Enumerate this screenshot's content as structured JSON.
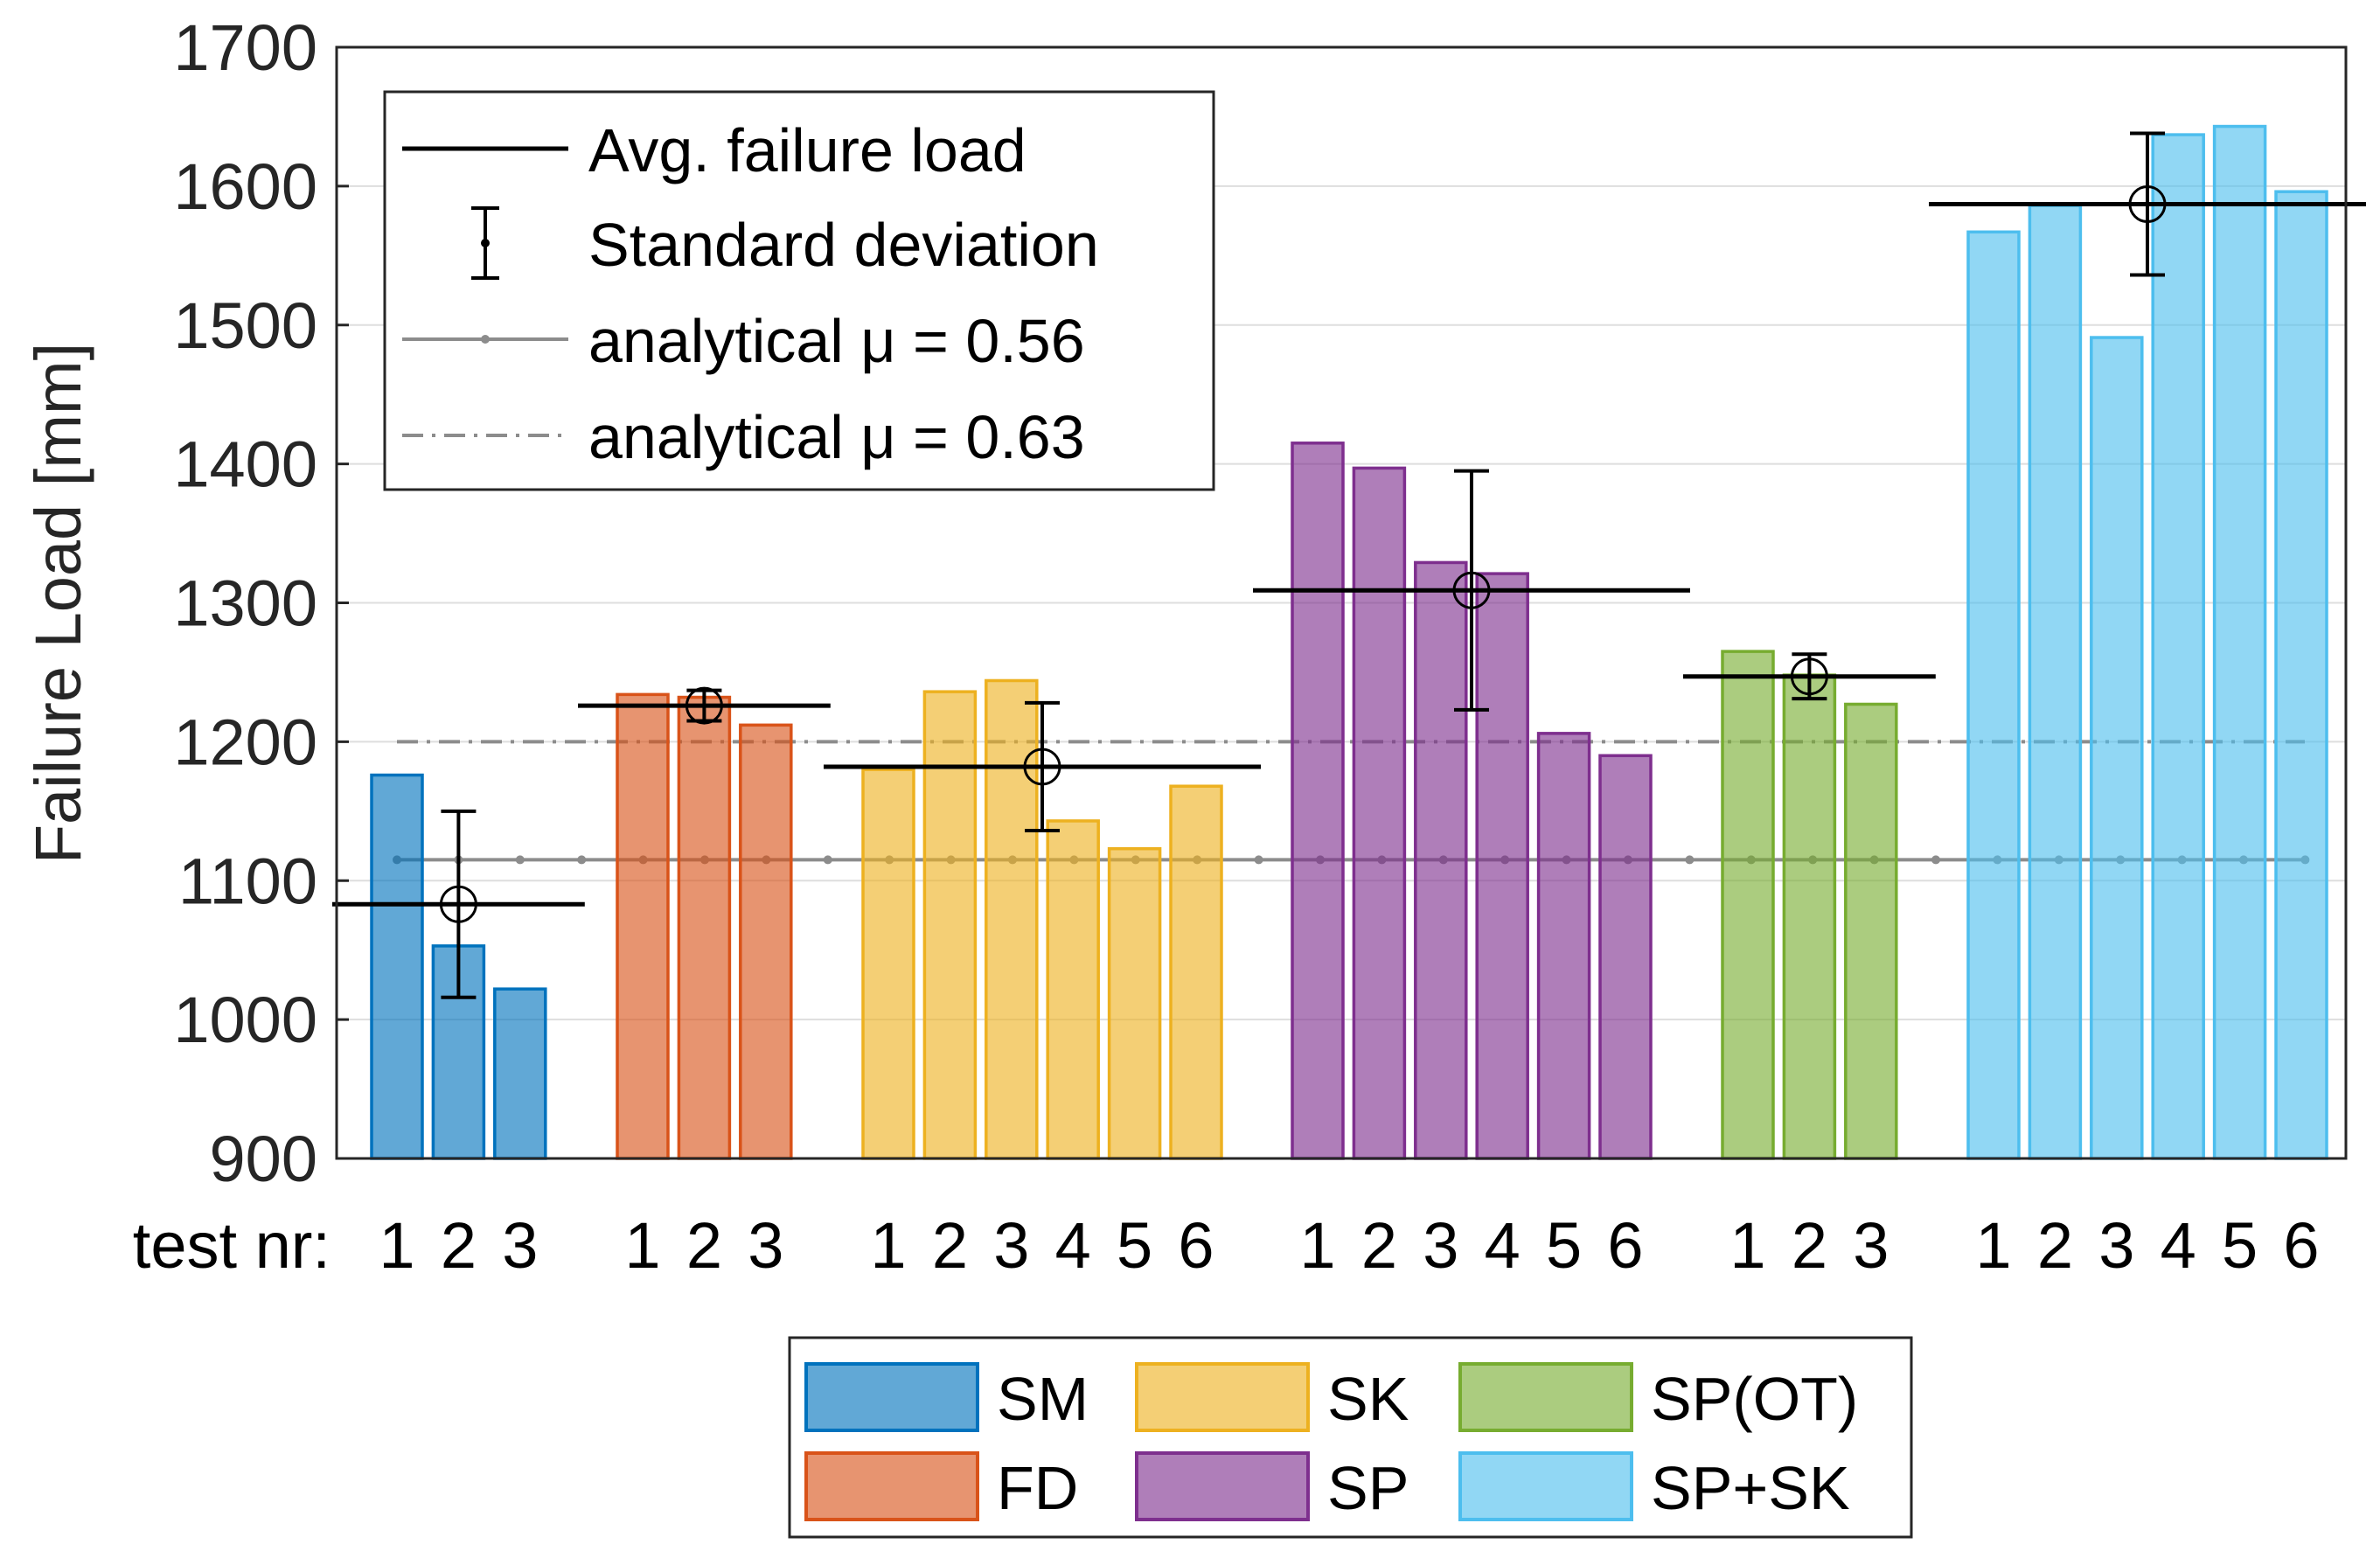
{
  "chart_data": {
    "type": "bar",
    "ylabel": "Failure Load [mm]",
    "ylim": [
      900,
      1700
    ],
    "yticks": [
      900,
      1000,
      1100,
      1200,
      1300,
      1400,
      1500,
      1600,
      1700
    ],
    "grid": true,
    "xlabel_prefix": "test nr:",
    "groups": [
      {
        "name": "SM",
        "color": "#0072BD",
        "tests": [
          "1",
          "2",
          "3"
        ],
        "values": [
          1176,
          1053,
          1022
        ],
        "avg": 1083,
        "std": 67
      },
      {
        "name": "FD",
        "color": "#D95319",
        "tests": [
          "1",
          "2",
          "3"
        ],
        "values": [
          1234,
          1232,
          1212
        ],
        "avg": 1226,
        "std": 11
      },
      {
        "name": "SK",
        "color": "#EDB120",
        "tests": [
          "1",
          "2",
          "3",
          "4",
          "5",
          "6"
        ],
        "values": [
          1180,
          1236,
          1244,
          1143,
          1123,
          1168
        ],
        "avg": 1182,
        "std": 46
      },
      {
        "name": "SP",
        "color": "#7E2F8E",
        "tests": [
          "1",
          "2",
          "3",
          "4",
          "5",
          "6"
        ],
        "values": [
          1415,
          1397,
          1329,
          1321,
          1206,
          1190
        ],
        "avg": 1309,
        "std": 86
      },
      {
        "name": "SP(OT)",
        "color": "#77AC30",
        "tests": [
          "1",
          "2",
          "3"
        ],
        "values": [
          1265,
          1248,
          1227
        ],
        "avg": 1247,
        "std": 16
      },
      {
        "name": "SP+SK",
        "color": "#4DBEEE",
        "tests": [
          "1",
          "2",
          "3",
          "4",
          "5",
          "6"
        ],
        "values": [
          1567,
          1586,
          1491,
          1637,
          1643,
          1596
        ],
        "avg": 1587,
        "std": 51
      }
    ],
    "reference_lines": [
      {
        "label": "analytical μ = 0.56",
        "value": 1115,
        "style": "solid-dotted",
        "color": "#8c8c8c"
      },
      {
        "label": "analytical μ = 0.63",
        "value": 1200,
        "style": "dashdot",
        "color": "#8c8c8c"
      }
    ],
    "legend_lines": [
      "Avg. failure load",
      "Standard deviation",
      "analytical μ = 0.56",
      "analytical μ = 0.63"
    ],
    "legend_lines_placement": "top-left",
    "legend_groups_placement": "bottom"
  }
}
